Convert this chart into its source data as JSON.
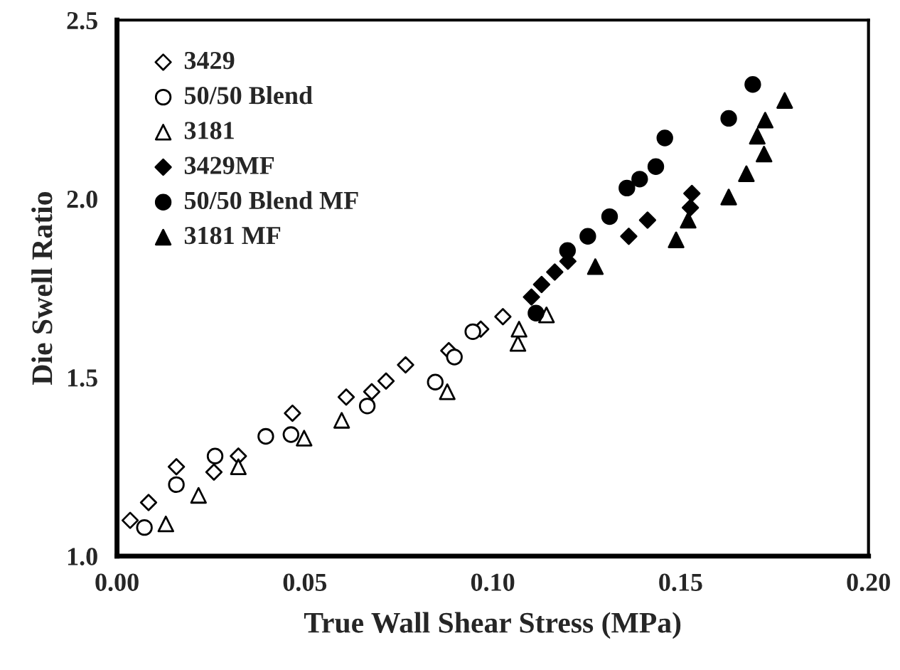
{
  "chart_data": {
    "type": "scatter",
    "xlabel": "True Wall Shear Stress (MPa)",
    "ylabel": "Die Swell Ratio",
    "xlim": [
      0,
      0.2
    ],
    "ylim": [
      1.0,
      2.5
    ],
    "xticks": [
      {
        "value": 0,
        "label": "0.00"
      },
      {
        "value": 0.05,
        "label": "0.05"
      },
      {
        "value": 0.1,
        "label": "0.10"
      },
      {
        "value": 0.15,
        "label": "0.15"
      },
      {
        "value": 0.2,
        "label": "0.20"
      }
    ],
    "yticks": [
      {
        "value": 1.0,
        "label": "1.0"
      },
      {
        "value": 1.5,
        "label": "1.5"
      },
      {
        "value": 2.0,
        "label": "2.0"
      },
      {
        "value": 2.5,
        "label": "2.5"
      }
    ],
    "grid": false,
    "legend": "top left",
    "series": [
      {
        "name": "3429",
        "marker": "diamond",
        "color": "#ffffff",
        "x": [
          0.0035,
          0.0084,
          0.0158,
          0.0258,
          0.0323,
          0.0467,
          0.061,
          0.0678,
          0.0716,
          0.0768,
          0.0883,
          0.0968,
          0.1027
        ],
        "values": [
          1.1,
          1.15,
          1.25,
          1.235,
          1.28,
          1.4,
          1.445,
          1.46,
          1.49,
          1.535,
          1.575,
          1.635,
          1.67
        ]
      },
      {
        "name": "50/50 Blend",
        "marker": "circle",
        "color": "#ffffff",
        "x": [
          0.0073,
          0.0158,
          0.0261,
          0.0396,
          0.0463,
          0.0666,
          0.0847,
          0.0898,
          0.0947
        ],
        "values": [
          1.08,
          1.2,
          1.28,
          1.335,
          1.34,
          1.42,
          1.487,
          1.557,
          1.628
        ]
      },
      {
        "name": "3181",
        "marker": "triangle",
        "color": "#ffffff",
        "x": [
          0.013,
          0.0217,
          0.0323,
          0.0498,
          0.0598,
          0.0879,
          0.1067,
          0.107,
          0.1143
        ],
        "values": [
          1.09,
          1.17,
          1.25,
          1.33,
          1.38,
          1.46,
          1.595,
          1.635,
          1.675
        ]
      },
      {
        "name": "3429MF",
        "marker": "diamond",
        "color": "#000000",
        "x": [
          0.1103,
          0.113,
          0.1165,
          0.12,
          0.1362,
          0.1412,
          0.1526,
          0.153
        ],
        "values": [
          1.725,
          1.76,
          1.795,
          1.825,
          1.895,
          1.94,
          1.975,
          2.015
        ]
      },
      {
        "name": "50/50 Blend MF",
        "marker": "circle",
        "color": "#000000",
        "x": [
          0.1115,
          0.1199,
          0.1253,
          0.1311,
          0.1357,
          0.1391,
          0.1434,
          0.1458,
          0.1628,
          0.1692
        ],
        "values": [
          1.68,
          1.855,
          1.895,
          1.95,
          2.03,
          2.055,
          2.09,
          2.17,
          2.225,
          2.32
        ]
      },
      {
        "name": "3181 MF",
        "marker": "triangle",
        "color": "#000000",
        "x": [
          0.1273,
          0.1488,
          0.152,
          0.1628,
          0.1675,
          0.1704,
          0.1722,
          0.1725,
          0.1777
        ],
        "values": [
          1.81,
          1.885,
          1.94,
          2.005,
          2.07,
          2.175,
          2.125,
          2.22,
          2.275
        ]
      }
    ]
  }
}
